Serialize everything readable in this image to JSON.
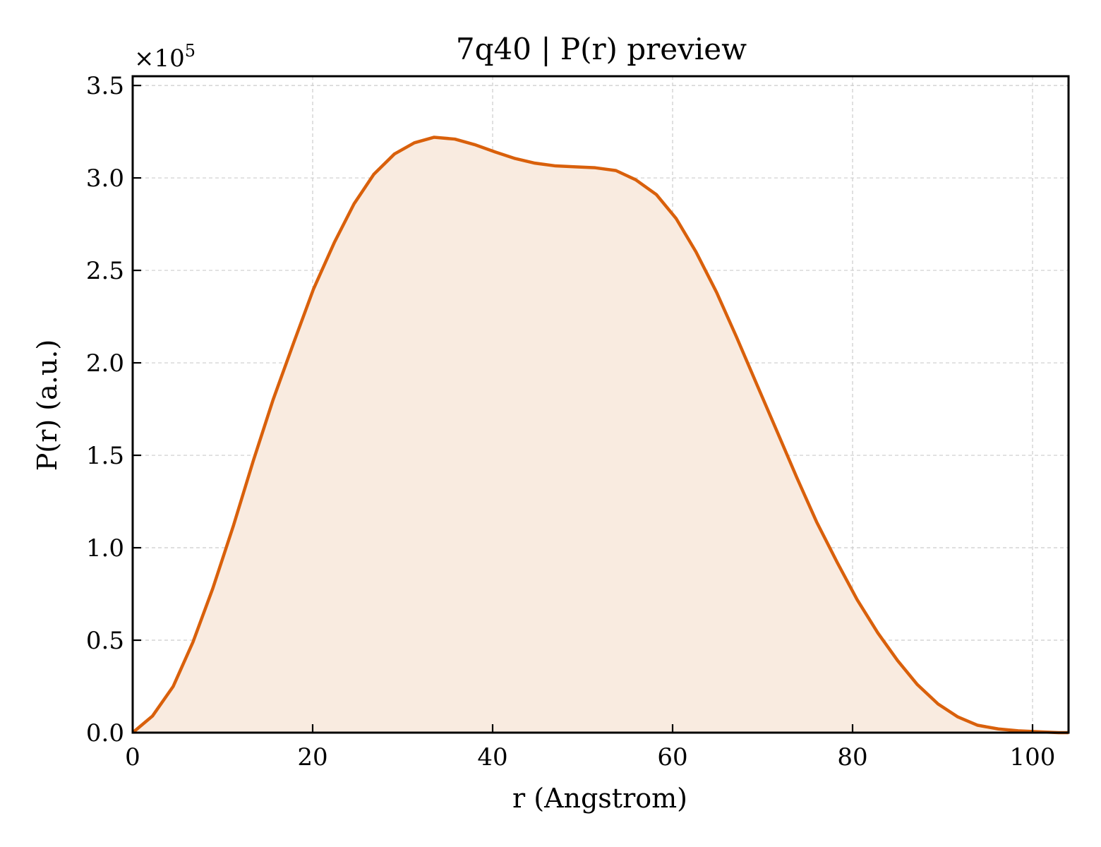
{
  "chart_data": {
    "type": "area",
    "title": "7q40 | P(r) preview",
    "xlabel": "r (Angstrom)",
    "ylabel": "P(r) (a.u.)",
    "y_offset_label": "×10",
    "y_offset_exponent": "5",
    "xlim": [
      0,
      104
    ],
    "ylim": [
      0,
      3.55
    ],
    "y_scale": 100000,
    "xticks": [
      0,
      20,
      40,
      60,
      80,
      100
    ],
    "xtick_labels": [
      "0",
      "20",
      "40",
      "60",
      "80",
      "100"
    ],
    "yticks": [
      0,
      0.5,
      1.0,
      1.5,
      2.0,
      2.5,
      3.0,
      3.5
    ],
    "ytick_labels": [
      "0.0",
      "0.5",
      "1.0",
      "1.5",
      "2.0",
      "2.5",
      "3.0",
      "3.5"
    ],
    "grid": true,
    "tick_direction": "in",
    "line_color": "#d9600b",
    "fill_color": "#f9ebe0",
    "series": [
      {
        "x": [
          0,
          2.2,
          4.5,
          6.7,
          8.9,
          11.2,
          13.4,
          15.6,
          17.9,
          20.1,
          22.4,
          24.6,
          26.8,
          29.1,
          31.3,
          33.5,
          35.8,
          38.0,
          40.3,
          42.5,
          44.7,
          47.0,
          49.2,
          51.4,
          53.7,
          55.9,
          58.2,
          60.4,
          62.6,
          64.9,
          67.1,
          69.3,
          71.6,
          73.8,
          76.0,
          78.3,
          80.5,
          82.8,
          85.0,
          87.2,
          89.5,
          91.7,
          93.9,
          96.2,
          98.4,
          100.7,
          102.9,
          104.0
        ],
        "values": [
          0.0,
          0.09,
          0.25,
          0.49,
          0.78,
          1.12,
          1.47,
          1.8,
          2.11,
          2.4,
          2.65,
          2.86,
          3.02,
          3.13,
          3.19,
          3.22,
          3.21,
          3.18,
          3.14,
          3.105,
          3.08,
          3.065,
          3.06,
          3.055,
          3.04,
          2.99,
          2.91,
          2.78,
          2.6,
          2.38,
          2.14,
          1.89,
          1.63,
          1.38,
          1.14,
          0.92,
          0.72,
          0.54,
          0.39,
          0.26,
          0.155,
          0.085,
          0.04,
          0.02,
          0.01,
          0.005,
          0.0,
          0.0
        ]
      }
    ]
  }
}
